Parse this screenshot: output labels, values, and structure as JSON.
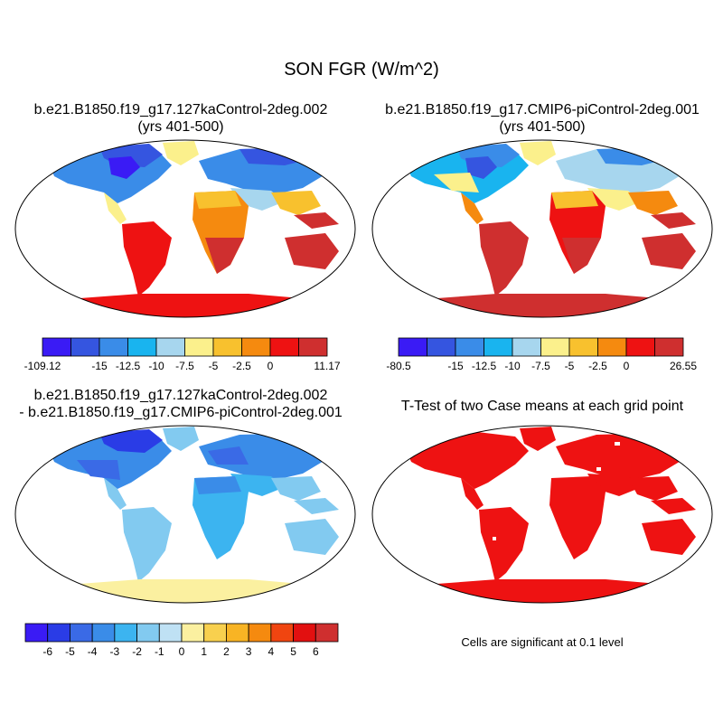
{
  "figure": {
    "title": "SON FGR (W/m^2)",
    "panels": [
      {
        "id": "case1",
        "title_line1": "b.e21.B1850.f19_g17.127kaControl-2deg.002",
        "title_line2": "(yrs 401-500)",
        "colorbar": {
          "colors": [
            "#3a1bf5",
            "#3555e0",
            "#3a8ce8",
            "#19b4ef",
            "#a7d6ee",
            "#fbf08c",
            "#f8c12e",
            "#f58a0f",
            "#ee1212",
            "#cf2f2f"
          ],
          "tick_labels": [
            "-109.12",
            "-15",
            "-12.5",
            "-10",
            "-7.5",
            "-5",
            "-2.5",
            "0",
            "11.17"
          ]
        }
      },
      {
        "id": "case2",
        "title_line1": "b.e21.B1850.f19_g17.CMIP6-piControl-2deg.001",
        "title_line2": "(yrs 401-500)",
        "colorbar": {
          "colors": [
            "#3a1bf5",
            "#3555e0",
            "#3a8ce8",
            "#19b4ef",
            "#a7d6ee",
            "#fbf08c",
            "#f8c12e",
            "#f58a0f",
            "#ee1212",
            "#cf2f2f"
          ],
          "tick_labels": [
            "-80.5",
            "-15",
            "-12.5",
            "-10",
            "-7.5",
            "-5",
            "-2.5",
            "0",
            "26.55"
          ]
        }
      },
      {
        "id": "difference",
        "title_line1": "b.e21.B1850.f19_g17.127kaControl-2deg.002",
        "title_line2": "- b.e21.B1850.f19_g17.CMIP6-piControl-2deg.001",
        "colorbar": {
          "colors": [
            "#3a1bf5",
            "#2a3ce6",
            "#3a6ae6",
            "#3a8ce8",
            "#3cb4f0",
            "#82caf0",
            "#bfe1f4",
            "#fbf0a0",
            "#f8d04e",
            "#f8b424",
            "#f58a0f",
            "#f04510",
            "#e21010",
            "#cf2f2f"
          ],
          "tick_labels": [
            "-6",
            "-5",
            "-4",
            "-3",
            "-2",
            "-1",
            "0",
            "1",
            "2",
            "3",
            "4",
            "5",
            "6"
          ]
        }
      },
      {
        "id": "ttest",
        "title_line1": "T-Test of two Case means at each grid point",
        "note": "Cells are significant at 0.1 level"
      }
    ]
  }
}
